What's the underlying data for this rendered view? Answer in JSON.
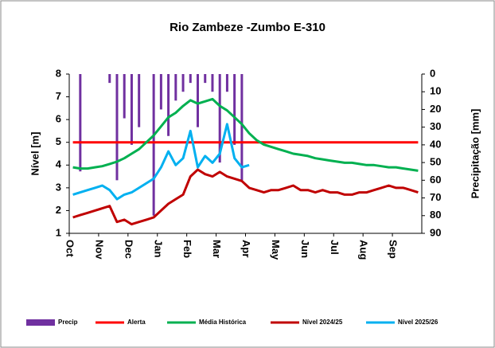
{
  "chart_data": {
    "type": "line",
    "title": "Rio Zambeze -Zumbo E-310",
    "ylabel": "Nível [m]",
    "y2label": "Precipitação [mm]",
    "categories": [
      "Oct",
      null,
      null,
      null,
      "Nov",
      null,
      null,
      null,
      "Dec",
      null,
      null,
      null,
      "Jan",
      null,
      null,
      null,
      "Feb",
      null,
      null,
      null,
      "Mar",
      null,
      null,
      null,
      "Apr",
      null,
      null,
      null,
      "May",
      null,
      null,
      null,
      "Jun",
      null,
      null,
      null,
      "Jul",
      null,
      null,
      null,
      "Aug",
      null,
      null,
      null,
      "Sep",
      null,
      null,
      null
    ],
    "ylim": [
      1,
      8
    ],
    "yticks": [
      1,
      2,
      3,
      4,
      5,
      6,
      7,
      8
    ],
    "y2lim": [
      0,
      90
    ],
    "y2_inverted": true,
    "y2ticks": [
      0,
      10,
      20,
      30,
      40,
      50,
      60,
      70,
      80,
      90
    ],
    "grid": false,
    "legend": "bottom",
    "series": [
      {
        "name": "Precip",
        "color": "#7030a0",
        "type": "bar",
        "axis": "y2",
        "values": [
          0,
          55,
          0,
          0,
          0,
          5,
          60,
          25,
          40,
          30,
          0,
          80,
          20,
          35,
          15,
          10,
          5,
          30,
          5,
          10,
          50,
          10,
          40,
          60,
          0,
          0,
          0,
          0,
          0,
          0,
          0,
          0,
          0,
          0,
          0,
          0,
          0,
          0,
          0,
          0,
          0,
          0,
          0,
          0,
          0,
          0,
          0,
          0
        ]
      },
      {
        "name": "Alerta",
        "color": "#ff0000",
        "values": [
          5,
          5,
          5,
          5,
          5,
          5,
          5,
          5,
          5,
          5,
          5,
          5,
          5,
          5,
          5,
          5,
          5,
          5,
          5,
          5,
          5,
          5,
          5,
          5,
          5,
          5,
          5,
          5,
          5,
          5,
          5,
          5,
          5,
          5,
          5,
          5,
          5,
          5,
          5,
          5,
          5,
          5,
          5,
          5,
          5,
          5,
          5,
          5
        ]
      },
      {
        "name": "Média Histórica",
        "color": "#00b050",
        "values": [
          3.9,
          3.85,
          3.85,
          3.9,
          3.95,
          4.05,
          4.15,
          4.3,
          4.5,
          4.7,
          5.0,
          5.3,
          5.7,
          6.1,
          6.3,
          6.6,
          6.85,
          6.7,
          6.8,
          6.9,
          6.6,
          6.4,
          6.1,
          5.8,
          5.4,
          5.1,
          4.9,
          4.8,
          4.7,
          4.6,
          4.5,
          4.45,
          4.4,
          4.3,
          4.25,
          4.2,
          4.15,
          4.1,
          4.1,
          4.05,
          4.0,
          4.0,
          3.95,
          3.9,
          3.9,
          3.85,
          3.8,
          3.75
        ]
      },
      {
        "name": "Nível 2024/25",
        "color": "#c00000",
        "values": [
          1.7,
          1.8,
          1.9,
          2.0,
          2.1,
          2.2,
          1.5,
          1.6,
          1.4,
          1.5,
          1.6,
          1.7,
          2.0,
          2.3,
          2.5,
          2.7,
          3.5,
          3.8,
          3.6,
          3.5,
          3.7,
          3.5,
          3.4,
          3.3,
          3.0,
          2.9,
          2.8,
          2.9,
          2.9,
          3.0,
          3.1,
          2.9,
          2.9,
          2.8,
          2.9,
          2.8,
          2.8,
          2.7,
          2.7,
          2.8,
          2.8,
          2.9,
          3.0,
          3.1,
          3.0,
          3.0,
          2.9,
          2.8
        ]
      },
      {
        "name": "Nível 2025/26",
        "color": "#00b0f0",
        "values": [
          2.7,
          2.8,
          2.9,
          3.0,
          3.1,
          2.9,
          2.5,
          2.7,
          2.8,
          3.0,
          3.2,
          3.4,
          3.9,
          4.6,
          4.0,
          4.3,
          5.5,
          3.9,
          4.4,
          4.1,
          4.5,
          5.8,
          4.3,
          3.9,
          4.0,
          null,
          null,
          null,
          null,
          null,
          null,
          null,
          null,
          null,
          null,
          null,
          null,
          null,
          null,
          null,
          null,
          null,
          null,
          null,
          null,
          null,
          null,
          null
        ]
      }
    ]
  }
}
